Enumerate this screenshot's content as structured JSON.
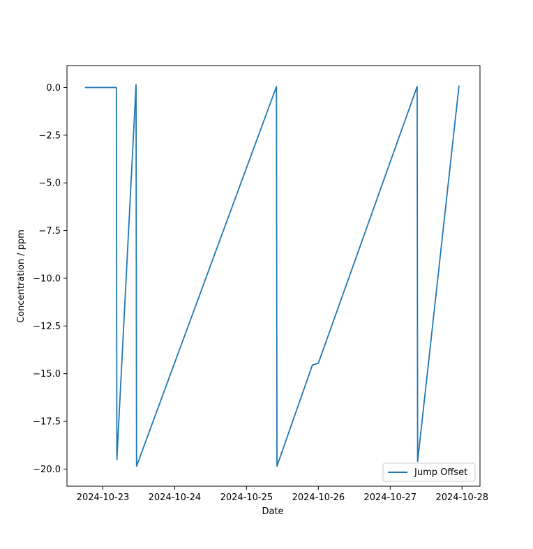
{
  "chart_data": {
    "type": "line",
    "title": "",
    "xlabel": "Date",
    "ylabel": "Concentration / ppm",
    "x_tick_labels": [
      "2024-10-23",
      "2024-10-24",
      "2024-10-25",
      "2024-10-26",
      "2024-10-27",
      "2024-10-28"
    ],
    "y_tick_labels": [
      "0.0",
      "−2.5",
      "−5.0",
      "−7.5",
      "−10.0",
      "−12.5",
      "−15.0",
      "−17.5",
      "−20.0"
    ],
    "y_ticks": [
      0.0,
      -2.5,
      -5.0,
      -7.5,
      -10.0,
      -12.5,
      -15.0,
      -17.5,
      -20.0
    ],
    "xlim": [
      "2024-10-22 12:00",
      "2024-10-28 06:00"
    ],
    "ylim": [
      -20.9,
      1.15
    ],
    "grid": false,
    "legend_position": "lower right",
    "series": [
      {
        "name": "Jump Offset",
        "color": "#1f77b4",
        "points": [
          {
            "x": "2024-10-22 18:00",
            "y": 0.0
          },
          {
            "x": "2024-10-23 04:30",
            "y": 0.0
          },
          {
            "x": "2024-10-23 04:40",
            "y": -19.5
          },
          {
            "x": "2024-10-23 11:05",
            "y": 0.15
          },
          {
            "x": "2024-10-23 11:15",
            "y": -19.85
          },
          {
            "x": "2024-10-25 10:00",
            "y": 0.05
          },
          {
            "x": "2024-10-25 10:10",
            "y": -19.85
          },
          {
            "x": "2024-10-25 22:00",
            "y": -14.55
          },
          {
            "x": "2024-10-26 00:00",
            "y": -14.45
          },
          {
            "x": "2024-10-27 09:00",
            "y": 0.05
          },
          {
            "x": "2024-10-27 09:10",
            "y": -19.6
          },
          {
            "x": "2024-10-27 23:00",
            "y": 0.1
          }
        ]
      }
    ]
  }
}
